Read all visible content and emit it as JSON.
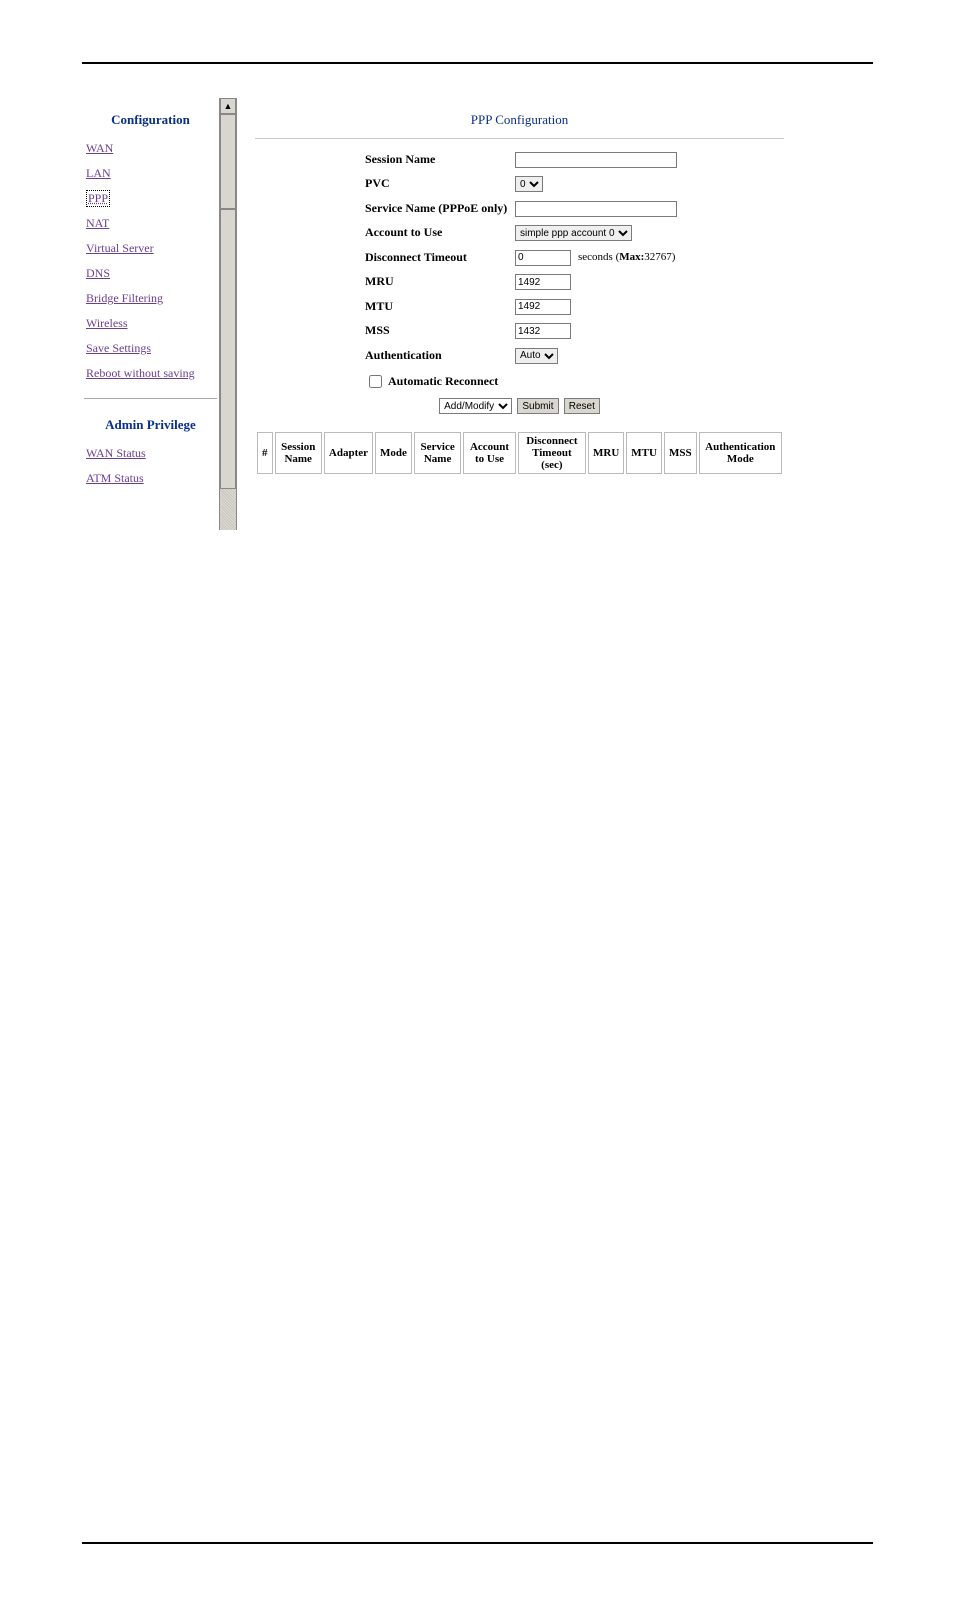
{
  "sidebar": {
    "heading_config": "Configuration",
    "heading_admin": "Admin Privilege",
    "config_items": [
      {
        "label": "WAN",
        "selected": false
      },
      {
        "label": "LAN",
        "selected": false
      },
      {
        "label": "PPP",
        "selected": true
      },
      {
        "label": "NAT",
        "selected": false
      },
      {
        "label": "Virtual Server",
        "selected": false
      },
      {
        "label": "DNS",
        "selected": false
      },
      {
        "label": "Bridge Filtering",
        "selected": false
      },
      {
        "label": "Wireless",
        "selected": false
      },
      {
        "label": "Save Settings",
        "selected": false
      },
      {
        "label": "Reboot without saving",
        "selected": false
      }
    ],
    "admin_items": [
      {
        "label": "WAN Status"
      },
      {
        "label": "ATM Status"
      }
    ]
  },
  "content": {
    "title": "PPP Configuration",
    "form": {
      "session_name": {
        "label": "Session Name",
        "value": ""
      },
      "pvc": {
        "label": "PVC",
        "value": "0"
      },
      "service_name": {
        "label": "Service Name (PPPoE only)",
        "value": ""
      },
      "account": {
        "label": "Account to Use",
        "value": "simple ppp account 0"
      },
      "disconnect_timeout": {
        "label": "Disconnect Timeout",
        "value": "0",
        "suffix": "seconds (",
        "max_label": "Max:",
        "max_value": "32767",
        "suffix_close": ")"
      },
      "mru": {
        "label": "MRU",
        "value": "1492"
      },
      "mtu": {
        "label": "MTU",
        "value": "1492"
      },
      "mss": {
        "label": "MSS",
        "value": "1432"
      },
      "authentication": {
        "label": "Authentication",
        "value": "Auto"
      },
      "auto_reconnect": {
        "label": "Automatic Reconnect",
        "checked": false
      }
    },
    "actions": {
      "action_select": "Add/Modify",
      "submit": "Submit",
      "reset": "Reset"
    },
    "table": {
      "columns": [
        "#",
        "Session Name",
        "Adapter",
        "Mode",
        "Service Name",
        "Account to Use",
        "Disconnect Timeout (sec)",
        "MRU",
        "MTU",
        "MSS",
        "Authentication Mode"
      ]
    }
  },
  "colors": {
    "link": "#6b3e91",
    "heading": "#0a2e8a",
    "border": "#888888",
    "input_border": "#7b7b7b"
  }
}
